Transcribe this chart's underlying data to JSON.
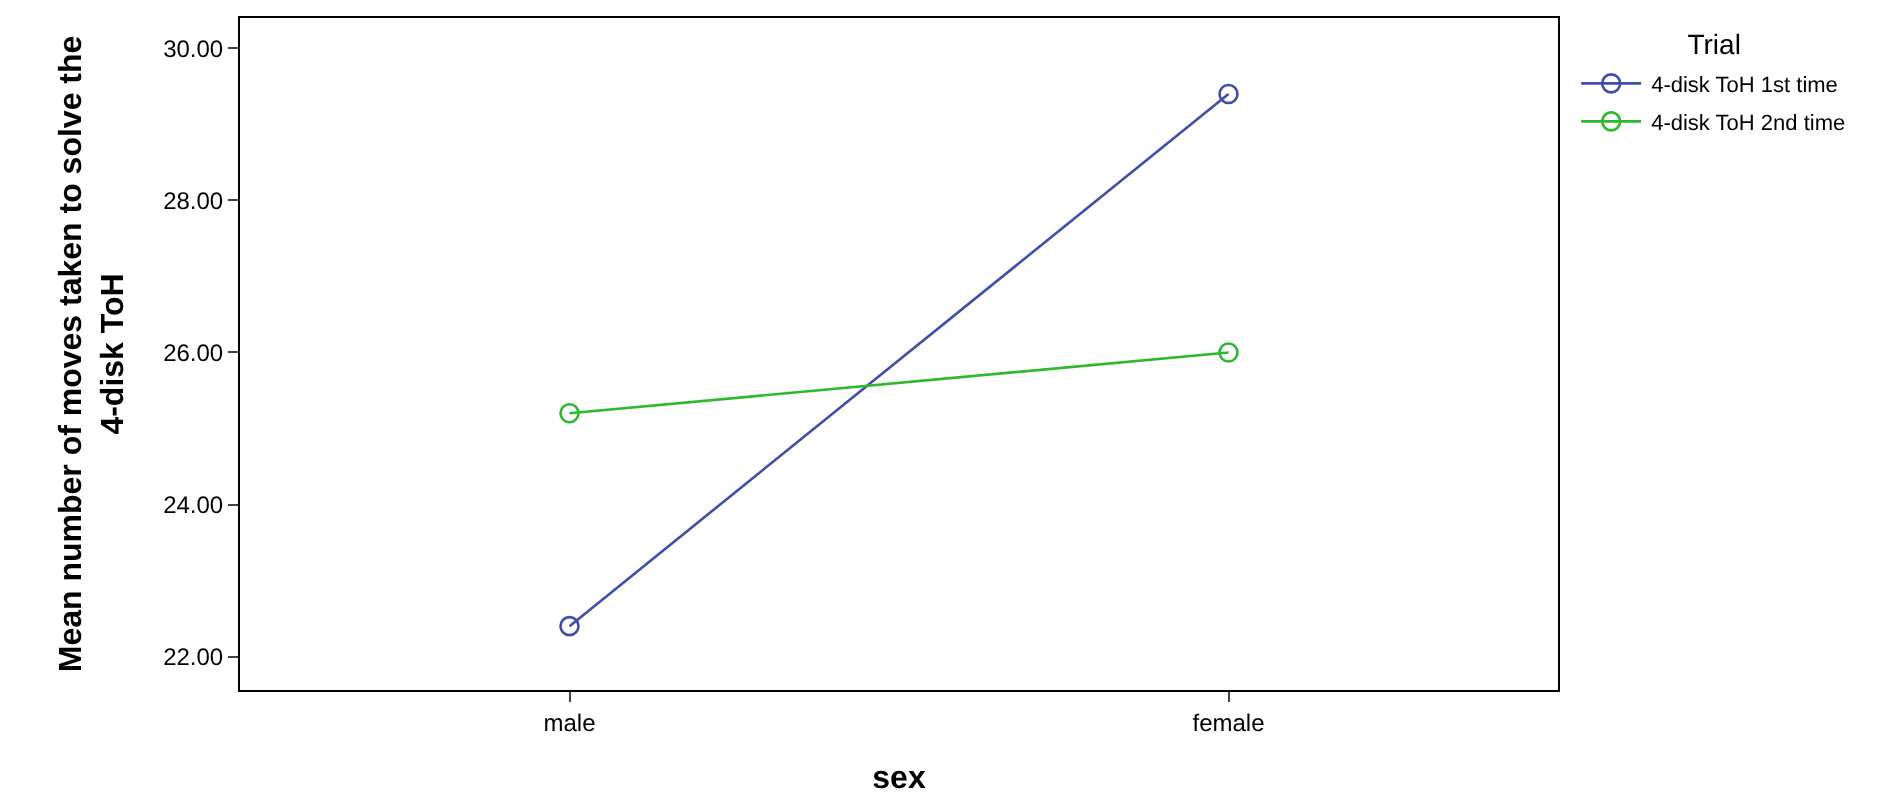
{
  "chart_data": {
    "type": "line",
    "xlabel": "sex",
    "ylabel": "Mean number of moves taken to solve the\n4-disk ToH",
    "legend_title": "Trial",
    "categories": [
      "male",
      "female"
    ],
    "series": [
      {
        "name": "4-disk ToH 1st time",
        "color": "#3f4fa8",
        "values": [
          22.4,
          29.4
        ]
      },
      {
        "name": "4-disk ToH 2nd time",
        "color": "#2eb82e",
        "values": [
          25.2,
          26.0
        ]
      }
    ],
    "ylim": [
      21.56,
      30.4
    ],
    "yticks": [
      {
        "value": 22,
        "label": "22.00"
      },
      {
        "value": 24,
        "label": "24.00"
      },
      {
        "value": 26,
        "label": "26.00"
      },
      {
        "value": 28,
        "label": "28.00"
      },
      {
        "value": 30,
        "label": "30.00"
      }
    ],
    "legend": "top right",
    "marker": "circle",
    "line_style": "solid"
  }
}
